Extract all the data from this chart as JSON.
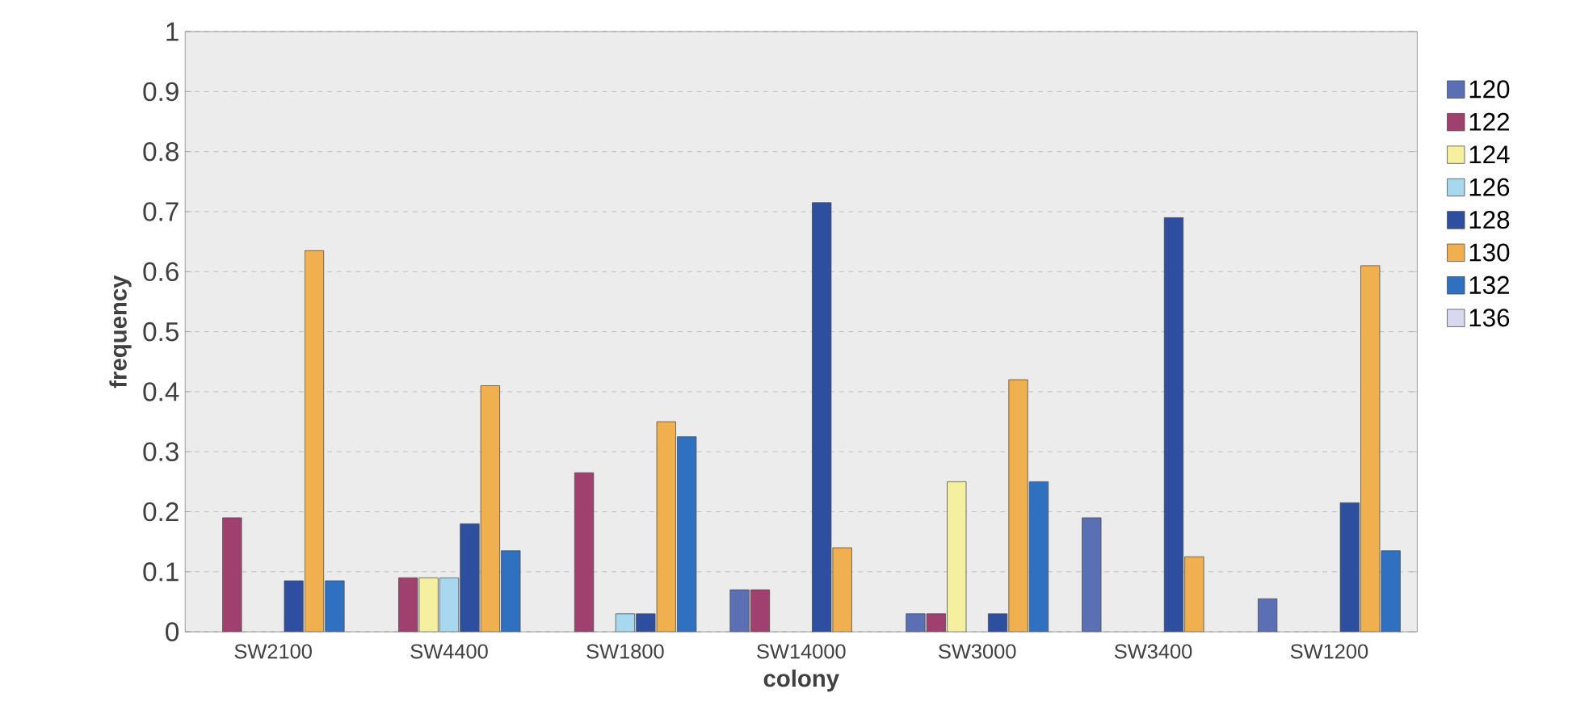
{
  "chart_data": {
    "type": "bar",
    "xlabel": "colony",
    "ylabel": "frequency",
    "categories": [
      "SW2100",
      "SW4400",
      "SW1800",
      "SW14000",
      "SW3000",
      "SW3400",
      "SW1200"
    ],
    "series": [
      {
        "name": "120",
        "color": "#5b6fb5",
        "values": [
          null,
          null,
          null,
          0.07,
          0.03,
          0.19,
          0.055
        ]
      },
      {
        "name": "122",
        "color": "#a0406e",
        "values": [
          0.19,
          0.09,
          0.265,
          0.07,
          0.03,
          null,
          null
        ]
      },
      {
        "name": "124",
        "color": "#f5f0a0",
        "values": [
          null,
          0.09,
          null,
          null,
          0.25,
          null,
          null
        ]
      },
      {
        "name": "126",
        "color": "#a8d8ef",
        "values": [
          null,
          0.09,
          0.03,
          null,
          null,
          null,
          null
        ]
      },
      {
        "name": "128",
        "color": "#2e4ea0",
        "values": [
          0.085,
          0.18,
          0.03,
          0.715,
          0.03,
          0.69,
          0.215
        ]
      },
      {
        "name": "130",
        "color": "#f0b050",
        "values": [
          0.635,
          0.41,
          0.35,
          0.14,
          0.42,
          0.125,
          0.61
        ]
      },
      {
        "name": "132",
        "color": "#2f70c0",
        "values": [
          0.085,
          0.135,
          0.325,
          null,
          0.25,
          null,
          0.135
        ]
      },
      {
        "name": "136",
        "color": "#d8d8f0",
        "values": [
          null,
          null,
          null,
          null,
          null,
          null,
          null
        ]
      }
    ],
    "ylim": [
      0,
      1
    ],
    "yticks": [
      0,
      0.1,
      0.2,
      0.3,
      0.4,
      0.5,
      0.6,
      0.7,
      0.8,
      0.9,
      1
    ],
    "grid": "y",
    "legend": "right"
  }
}
